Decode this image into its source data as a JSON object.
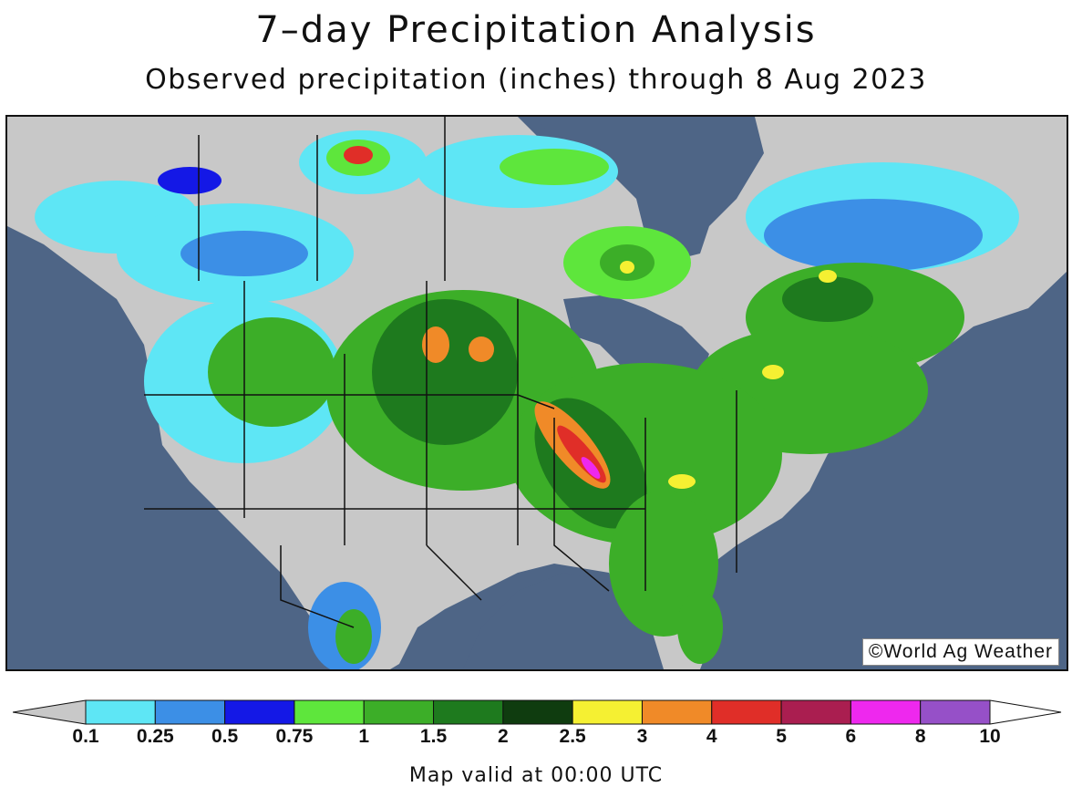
{
  "title": "7–day Precipitation Analysis",
  "subtitle": "Observed precipitation (inches) through 8 Aug 2023",
  "credit": "World Ag Weather",
  "credit_icon": "copyright-icon",
  "footer": "Map valid at 00:00 UTC",
  "colors": {
    "ocean": "#4e6586",
    "land_dry": "#c8c8c8",
    "border": "#111111"
  },
  "legend": {
    "unit": "inches",
    "below_color": "#c8c8c8",
    "above_color": "#ffffff",
    "bins": [
      {
        "from": "0.1",
        "to": "0.25",
        "color": "#5ee6f5"
      },
      {
        "from": "0.25",
        "to": "0.5",
        "color": "#3c8fe6"
      },
      {
        "from": "0.5",
        "to": "0.75",
        "color": "#1418e6"
      },
      {
        "from": "0.75",
        "to": "1",
        "color": "#5ee63c"
      },
      {
        "from": "1",
        "to": "1.5",
        "color": "#3cae28"
      },
      {
        "from": "1.5",
        "to": "2",
        "color": "#1e7a1e"
      },
      {
        "from": "2",
        "to": "2.5",
        "color": "#0f3c0f"
      },
      {
        "from": "2.5",
        "to": "3",
        "color": "#f5f032"
      },
      {
        "from": "3",
        "to": "4",
        "color": "#f08a28"
      },
      {
        "from": "4",
        "to": "5",
        "color": "#e02e28"
      },
      {
        "from": "5",
        "to": "6",
        "color": "#aa1e50"
      },
      {
        "from": "6",
        "to": "8",
        "color": "#ee28ee"
      },
      {
        "from": "8",
        "to": "10",
        "color": "#9650c8"
      }
    ],
    "tick_labels": [
      "0.1",
      "0.25",
      "0.5",
      "0.75",
      "1",
      "1.5",
      "2",
      "2.5",
      "3",
      "4",
      "5",
      "6",
      "8",
      "10"
    ]
  }
}
